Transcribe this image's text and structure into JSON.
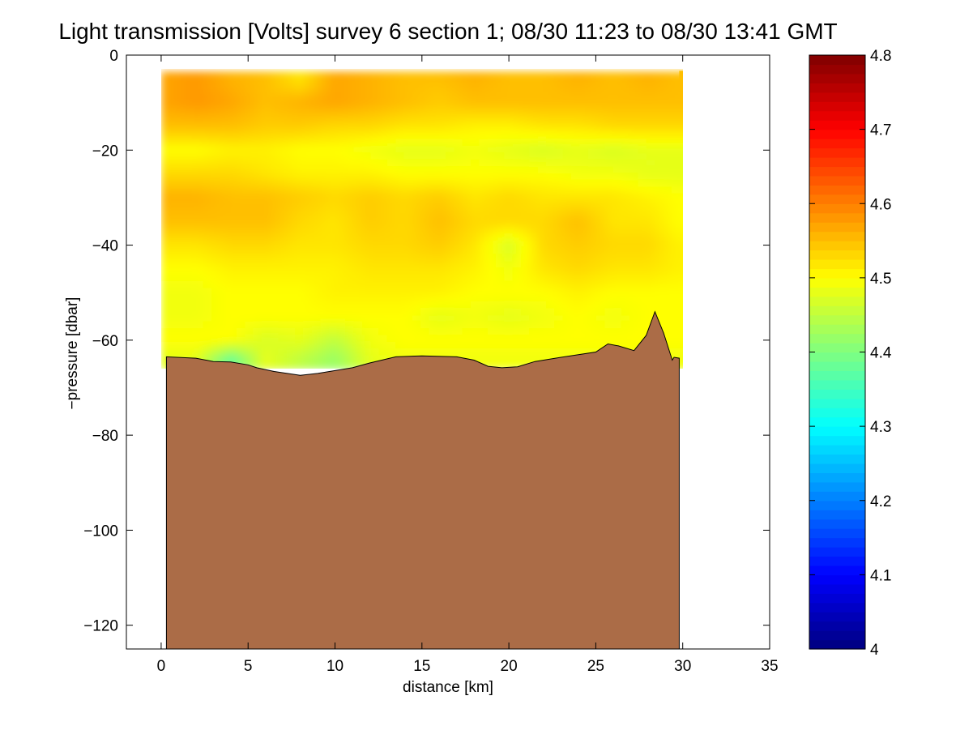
{
  "chart_data": {
    "type": "heatmap",
    "title": "Light transmission [Volts] survey 6 section 1; 08/30 11:23 to 08/30 13:41 GMT",
    "xlabel": "distance [km]",
    "ylabel": "−pressure [dbar]",
    "xlim": [
      -2,
      35
    ],
    "ylim": [
      -125,
      0
    ],
    "xticks": [
      "0",
      "5",
      "10",
      "15",
      "20",
      "25",
      "30",
      "35"
    ],
    "yticks": [
      "0",
      "−20",
      "−40",
      "−60",
      "−80",
      "−100",
      "−120"
    ],
    "colorbar": {
      "min": 4.0,
      "max": 4.8,
      "ticks": [
        "4",
        "4.1",
        "4.2",
        "4.3",
        "4.4",
        "4.5",
        "4.6",
        "4.7",
        "4.8"
      ],
      "colormap": "jet"
    },
    "field_extent": {
      "x": [
        0,
        29.8
      ],
      "y": [
        -66,
        -3.5
      ]
    },
    "profiles_km": [
      0,
      2,
      4,
      6,
      8,
      10,
      12,
      14,
      16,
      18,
      20,
      22,
      24,
      26,
      28,
      29.8
    ],
    "depth_bands_dbar": [
      -5,
      -10,
      -15,
      -20,
      -25,
      -30,
      -35,
      -40,
      -45,
      -50,
      -55,
      -60,
      -64
    ],
    "transmission_volts": [
      [
        4.57,
        4.58,
        4.56,
        4.55,
        4.52,
        4.57,
        4.56,
        4.55,
        4.55,
        4.56,
        4.55,
        4.55,
        4.56,
        4.55,
        4.56,
        4.55
      ],
      [
        4.57,
        4.58,
        4.57,
        4.55,
        4.56,
        4.57,
        4.56,
        4.55,
        4.54,
        4.55,
        4.55,
        4.55,
        4.55,
        4.55,
        4.55,
        4.55
      ],
      [
        4.55,
        4.55,
        4.55,
        4.54,
        4.54,
        4.53,
        4.53,
        4.52,
        4.52,
        4.51,
        4.51,
        4.52,
        4.52,
        4.53,
        4.53,
        4.53
      ],
      [
        4.5,
        4.5,
        4.51,
        4.51,
        4.5,
        4.5,
        4.49,
        4.48,
        4.48,
        4.49,
        4.48,
        4.47,
        4.48,
        4.47,
        4.48,
        4.48
      ],
      [
        4.53,
        4.53,
        4.53,
        4.52,
        4.51,
        4.51,
        4.51,
        4.5,
        4.5,
        4.5,
        4.5,
        4.5,
        4.49,
        4.49,
        4.48,
        4.48
      ],
      [
        4.56,
        4.56,
        4.55,
        4.55,
        4.54,
        4.53,
        4.54,
        4.53,
        4.54,
        4.52,
        4.53,
        4.52,
        4.52,
        4.52,
        4.51,
        4.5
      ],
      [
        4.55,
        4.55,
        4.55,
        4.55,
        4.53,
        4.52,
        4.54,
        4.53,
        4.55,
        4.53,
        4.53,
        4.53,
        4.55,
        4.52,
        4.52,
        4.5
      ],
      [
        4.52,
        4.52,
        4.53,
        4.53,
        4.52,
        4.52,
        4.53,
        4.53,
        4.54,
        4.52,
        4.47,
        4.53,
        4.54,
        4.53,
        4.53,
        4.51
      ],
      [
        4.5,
        4.5,
        4.51,
        4.51,
        4.51,
        4.51,
        4.52,
        4.52,
        4.52,
        4.51,
        4.49,
        4.52,
        4.53,
        4.52,
        4.52,
        4.51
      ],
      [
        4.49,
        4.49,
        4.5,
        4.5,
        4.5,
        4.51,
        4.51,
        4.51,
        4.51,
        4.5,
        4.5,
        4.5,
        4.51,
        4.5,
        4.5,
        4.5
      ],
      [
        4.49,
        4.49,
        4.5,
        4.5,
        4.5,
        4.5,
        4.5,
        4.5,
        4.48,
        4.49,
        4.48,
        4.49,
        4.5,
        4.49,
        4.5,
        4.5
      ],
      [
        4.5,
        4.5,
        4.5,
        4.47,
        4.48,
        4.45,
        4.49,
        4.5,
        4.5,
        4.5,
        4.5,
        4.5,
        4.5,
        4.5,
        4.5,
        4.5
      ],
      [
        4.48,
        4.48,
        4.38,
        4.48,
        4.45,
        4.42,
        4.48,
        4.49,
        4.49,
        4.49,
        4.49,
        4.49,
        4.49,
        4.49,
        4.49,
        4.49
      ]
    ],
    "bottom_profile": {
      "x": [
        0.3,
        2,
        3,
        4,
        5,
        5.5,
        6.5,
        8,
        9,
        11,
        12,
        13.5,
        15,
        17,
        18,
        18.8,
        19.6,
        20.5,
        21.5,
        23,
        25,
        25.7,
        26.3,
        27.2,
        27.9,
        28.4,
        28.9,
        29.4,
        29.5,
        29.8
      ],
      "y": [
        -63.5,
        -63.8,
        -64.5,
        -64.6,
        -65.2,
        -65.8,
        -66.6,
        -67.4,
        -67.0,
        -65.8,
        -64.8,
        -63.5,
        -63.3,
        -63.5,
        -64.2,
        -65.5,
        -65.8,
        -65.6,
        -64.5,
        -63.6,
        -62.5,
        -60.8,
        -61.2,
        -62.2,
        -59.0,
        -54.0,
        -58.5,
        -64.2,
        -63.6,
        -63.8
      ]
    }
  }
}
